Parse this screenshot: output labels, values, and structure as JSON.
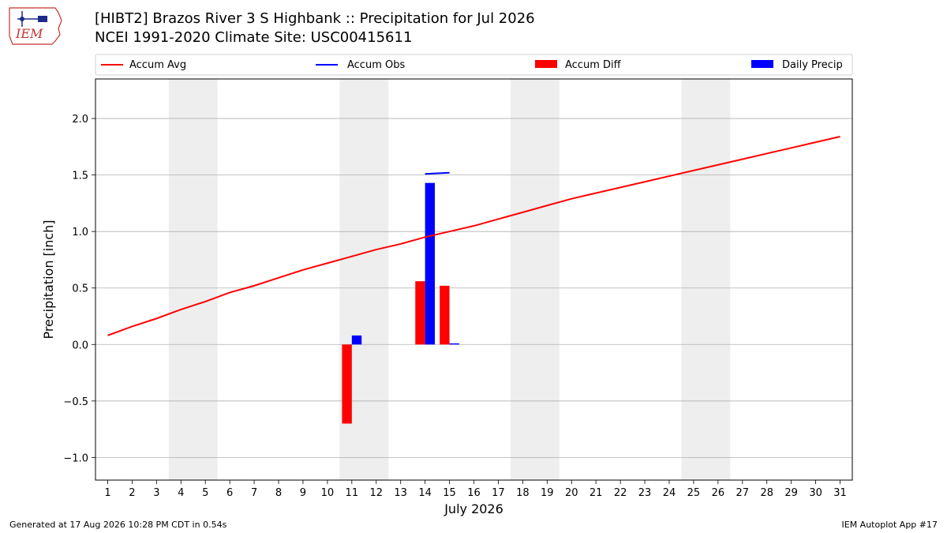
{
  "header": {
    "logo_text": "IEM",
    "title_line1": "[HIBT2] Brazos River 3 S Highbank :: Precipitation for Jul 2026",
    "title_line2": "NCEI 1991-2020 Climate Site: USC00415611"
  },
  "footer": {
    "generated": "Generated at 17 Aug 2026 10:28 PM CDT in 0.54s",
    "app": "IEM Autoplot App #17"
  },
  "colors": {
    "accum_avg": "#ff0000",
    "accum_obs": "#0000ff",
    "accum_diff": "#ff0000",
    "daily_precip": "#0000ff",
    "weekend_shade": "#eeeeee",
    "grid": "#b0b0b0"
  },
  "chart_data": {
    "type": "bar",
    "xlabel": "July 2026",
    "ylabel": "Precipitation [inch]",
    "x_days": [
      1,
      2,
      3,
      4,
      5,
      6,
      7,
      8,
      9,
      10,
      11,
      12,
      13,
      14,
      15,
      16,
      17,
      18,
      19,
      20,
      21,
      22,
      23,
      24,
      25,
      26,
      27,
      28,
      29,
      30,
      31
    ],
    "x_tick_labels": [
      "1",
      "2",
      "3",
      "4",
      "5",
      "6",
      "7",
      "8",
      "9",
      "10",
      "11",
      "12",
      "13",
      "14",
      "15",
      "16",
      "17",
      "18",
      "19",
      "20",
      "21",
      "22",
      "23",
      "24",
      "25",
      "26",
      "27",
      "28",
      "29",
      "30",
      "31"
    ],
    "xlim": [
      0.5,
      31.5
    ],
    "ylim": [
      -1.2,
      2.35
    ],
    "y_ticks": [
      -1.0,
      -0.5,
      0.0,
      0.5,
      1.0,
      1.5,
      2.0
    ],
    "y_tick_labels": [
      "−1.0",
      "−0.5",
      "0.0",
      "0.5",
      "1.0",
      "1.5",
      "2.0"
    ],
    "grid": true,
    "legend_position": "top",
    "weekend_shading": [
      [
        4,
        5
      ],
      [
        11,
        12
      ],
      [
        18,
        19
      ],
      [
        25,
        26
      ]
    ],
    "series": [
      {
        "name": "Accum Avg",
        "kind": "line",
        "x": [
          1,
          2,
          3,
          4,
          5,
          6,
          7,
          8,
          9,
          10,
          11,
          12,
          13,
          14,
          15,
          16,
          17,
          18,
          19,
          20,
          21,
          22,
          23,
          24,
          25,
          26,
          27,
          28,
          29,
          30,
          31
        ],
        "values": [
          0.08,
          0.16,
          0.23,
          0.31,
          0.38,
          0.46,
          0.52,
          0.59,
          0.66,
          0.72,
          0.78,
          0.84,
          0.89,
          0.95,
          1.0,
          1.05,
          1.11,
          1.17,
          1.23,
          1.29,
          1.34,
          1.39,
          1.44,
          1.49,
          1.54,
          1.59,
          1.64,
          1.69,
          1.74,
          1.79,
          1.84
        ]
      },
      {
        "name": "Accum Obs",
        "kind": "line",
        "x": [
          14,
          15
        ],
        "values": [
          1.51,
          1.52
        ]
      },
      {
        "name": "Accum Diff",
        "kind": "bar",
        "x": [
          11,
          14,
          15
        ],
        "values": [
          -0.7,
          0.56,
          0.52
        ]
      },
      {
        "name": "Daily Precip",
        "kind": "bar",
        "x": [
          11,
          14,
          15
        ],
        "values": [
          0.08,
          1.43,
          0.01
        ]
      }
    ]
  }
}
